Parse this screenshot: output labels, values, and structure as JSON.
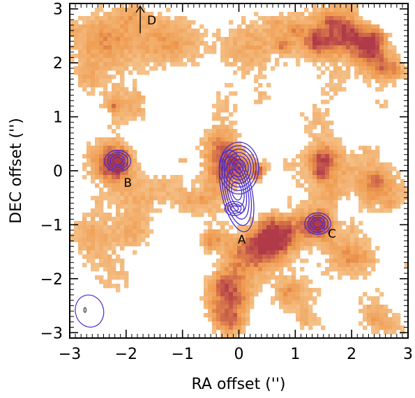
{
  "chart_data": {
    "type": "heatmap",
    "title": "",
    "xlabel": "RA offset ('')",
    "ylabel": "DEC offset ('')",
    "xlim": [
      -3,
      3
    ],
    "ylim": [
      -3.1,
      3.1
    ],
    "xticks": [
      -3,
      -2,
      -1,
      0,
      1,
      2,
      3
    ],
    "yticks": [
      -3,
      -2,
      -1,
      0,
      1,
      2,
      3
    ],
    "xtick_labels": [
      "−3",
      "−2",
      "−1",
      "0",
      "1",
      "2",
      "3"
    ],
    "ytick_labels": [
      "−3",
      "−2",
      "−1",
      "0",
      "1",
      "2",
      "3"
    ],
    "colormap": {
      "low": "#f5c28a",
      "mid": "#ef9a4e",
      "high": "#b03a48"
    },
    "contour_color": "#4a2fc8",
    "sources": [
      {
        "label": "A",
        "x": 0.0,
        "y": 0.05,
        "label_x": 0.05,
        "label_y": -1.27,
        "levels": 7
      },
      {
        "label": "B",
        "x": -2.15,
        "y": 0.18,
        "label_x": -1.97,
        "label_y": -0.22,
        "levels": 4
      },
      {
        "label": "C",
        "x": 1.4,
        "y": -0.98,
        "label_x": 1.65,
        "label_y": -1.16,
        "levels": 4
      }
    ],
    "secondary_peak": {
      "x": -0.08,
      "y": -0.7
    },
    "emission_peaks": [
      {
        "x": 0.55,
        "y": -1.3,
        "value": 1.0
      },
      {
        "x": -0.2,
        "y": -2.3,
        "value": 0.85
      },
      {
        "x": -0.35,
        "y": 0.4,
        "value": 0.8
      }
    ],
    "direction_arrow": {
      "label": "D",
      "x": -1.75,
      "y_start": 2.55,
      "y_end": 3.05
    },
    "beam": {
      "x": -2.65,
      "y": -2.6,
      "major": 0.6,
      "minor": 0.5
    },
    "grid": false
  }
}
